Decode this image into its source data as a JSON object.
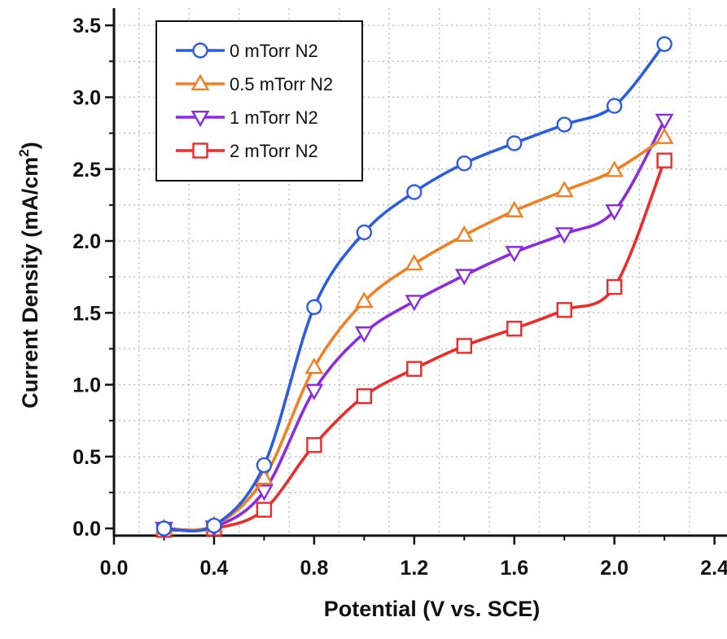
{
  "chart_data": {
    "type": "line",
    "title": "",
    "xlabel": "Potential (V vs. SCE)",
    "ylabel": "Current Density (mA/cm",
    "ylabel_sup": "2",
    "ylabel_close": ")",
    "xlim": [
      0.0,
      2.45
    ],
    "ylim": [
      -0.05,
      3.62
    ],
    "x_ticks": [
      0.0,
      0.4,
      0.8,
      1.2,
      1.6,
      2.0,
      2.4
    ],
    "x_tick_labels": [
      "0.0",
      "0.4",
      "0.8",
      "1.2",
      "1.6",
      "2.0",
      "2.4"
    ],
    "y_ticks": [
      0.0,
      0.5,
      1.0,
      1.5,
      2.0,
      2.5,
      3.0,
      3.5
    ],
    "y_tick_labels": [
      "0.0",
      "0.5",
      "1.0",
      "1.5",
      "2.0",
      "2.5",
      "3.0",
      "3.5"
    ],
    "grid": true,
    "legend_position": "top-left",
    "x": [
      0.2,
      0.4,
      0.6,
      0.8,
      1.0,
      1.2,
      1.4,
      1.6,
      1.8,
      2.0,
      2.2
    ],
    "series": [
      {
        "name": "0 mTorr N2",
        "color": "#2b5ce6",
        "marker": "circle",
        "values": [
          0.0,
          0.02,
          0.44,
          1.54,
          2.06,
          2.34,
          2.54,
          2.68,
          2.81,
          2.94,
          3.37
        ]
      },
      {
        "name": "0.5 mTorr N2",
        "color": "#f27f22",
        "marker": "triangle-up",
        "values": [
          0.0,
          0.02,
          0.35,
          1.12,
          1.58,
          1.84,
          2.04,
          2.21,
          2.35,
          2.49,
          2.72
        ]
      },
      {
        "name": "1 mTorr N2",
        "color": "#8a2be2",
        "marker": "triangle-down",
        "values": [
          0.0,
          0.01,
          0.26,
          0.96,
          1.36,
          1.58,
          1.76,
          1.92,
          2.05,
          2.21,
          2.84
        ]
      },
      {
        "name": "2 mTorr N2",
        "color": "#ee2a2a",
        "marker": "square",
        "values": [
          -0.01,
          0.0,
          0.13,
          0.58,
          0.92,
          1.11,
          1.27,
          1.39,
          1.52,
          1.68,
          2.56
        ]
      }
    ]
  }
}
